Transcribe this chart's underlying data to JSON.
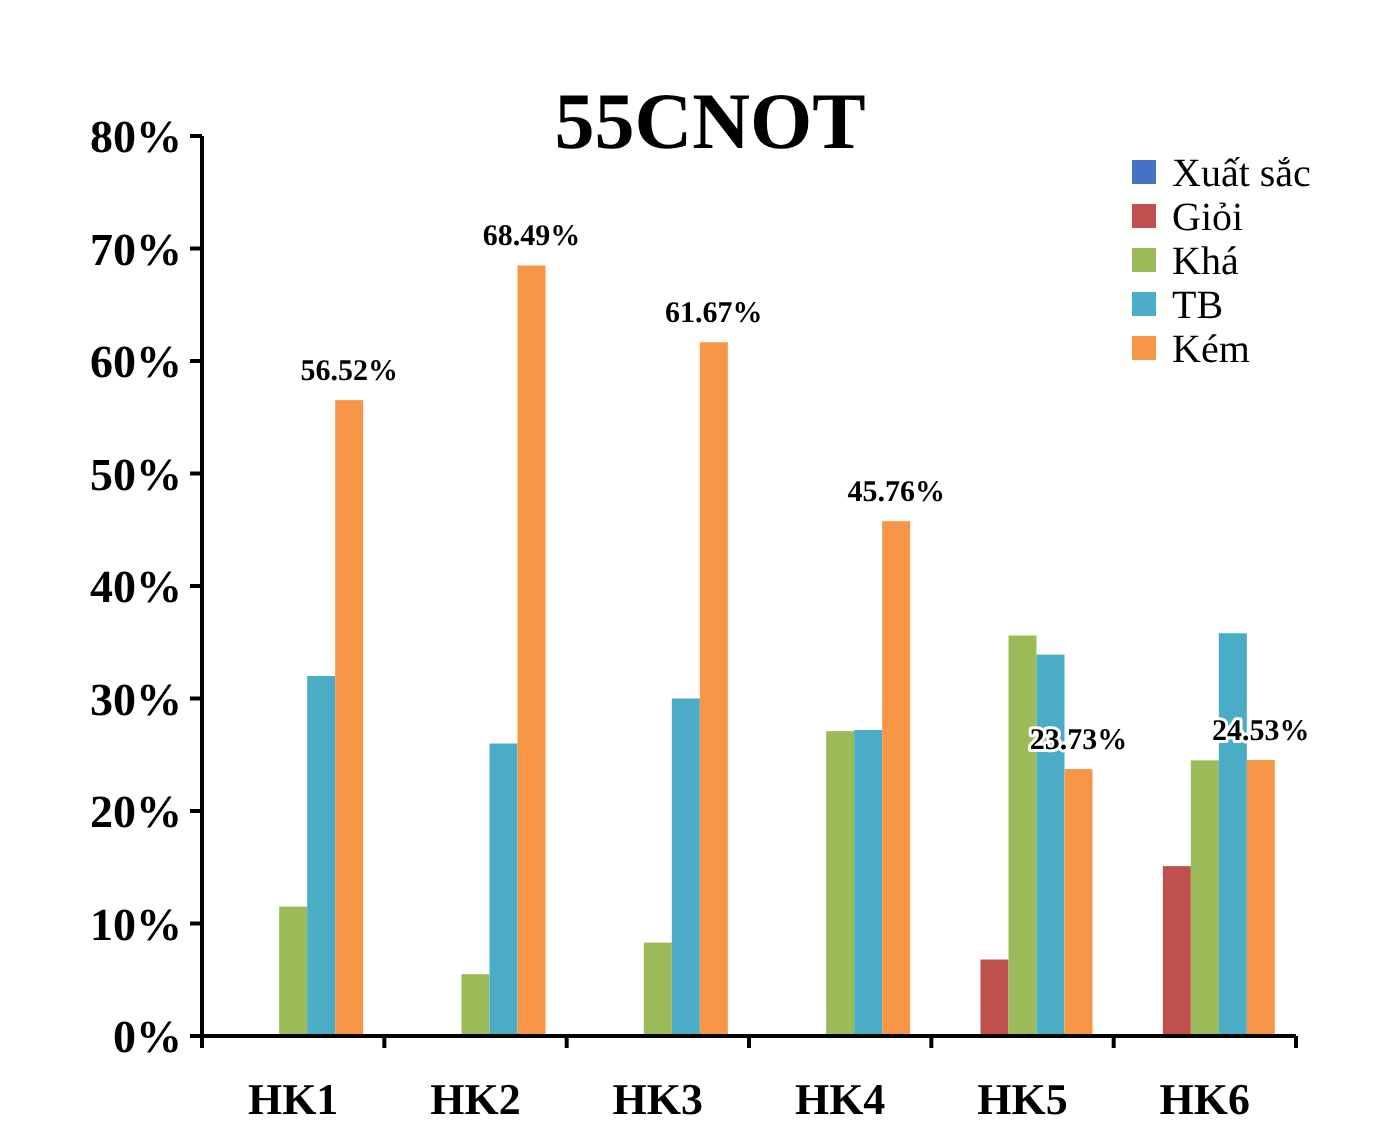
{
  "chart_data": {
    "type": "bar",
    "title": "55CNOT",
    "categories": [
      "HK1",
      "HK2",
      "HK3",
      "HK4",
      "HK5",
      "HK6"
    ],
    "series": [
      {
        "name": "Xuất sắc",
        "color": "#4472c4",
        "values": [
          0,
          0,
          0,
          0,
          0,
          0
        ]
      },
      {
        "name": "Giỏi",
        "color": "#c0504d",
        "values": [
          0,
          0,
          0,
          0,
          6.8,
          15.1
        ]
      },
      {
        "name": "Khá",
        "color": "#9bbb59",
        "values": [
          11.5,
          5.5,
          8.3,
          27.1,
          35.6,
          24.5
        ]
      },
      {
        "name": "TB",
        "color": "#4bacc6",
        "values": [
          32,
          26,
          30,
          27.2,
          33.9,
          35.8
        ]
      },
      {
        "name": "Kém",
        "color": "#f79646",
        "values": [
          56.52,
          68.49,
          61.67,
          45.76,
          23.73,
          24.53
        ],
        "value_labels": [
          "56.52%",
          "68.49%",
          "61.67%",
          "45.76%",
          "23.73%",
          "24.53%"
        ]
      }
    ],
    "ylim": [
      0,
      80
    ],
    "yticks": [
      {
        "value": 0,
        "label": "0%"
      },
      {
        "value": 10,
        "label": "10%"
      },
      {
        "value": 20,
        "label": "20%"
      },
      {
        "value": 30,
        "label": "30%"
      },
      {
        "value": 40,
        "label": "40%"
      },
      {
        "value": 50,
        "label": "50%"
      },
      {
        "value": 60,
        "label": "60%"
      },
      {
        "value": 70,
        "label": "70%"
      },
      {
        "value": 80,
        "label": "80%"
      }
    ],
    "legend": "top right",
    "grid": false
  }
}
